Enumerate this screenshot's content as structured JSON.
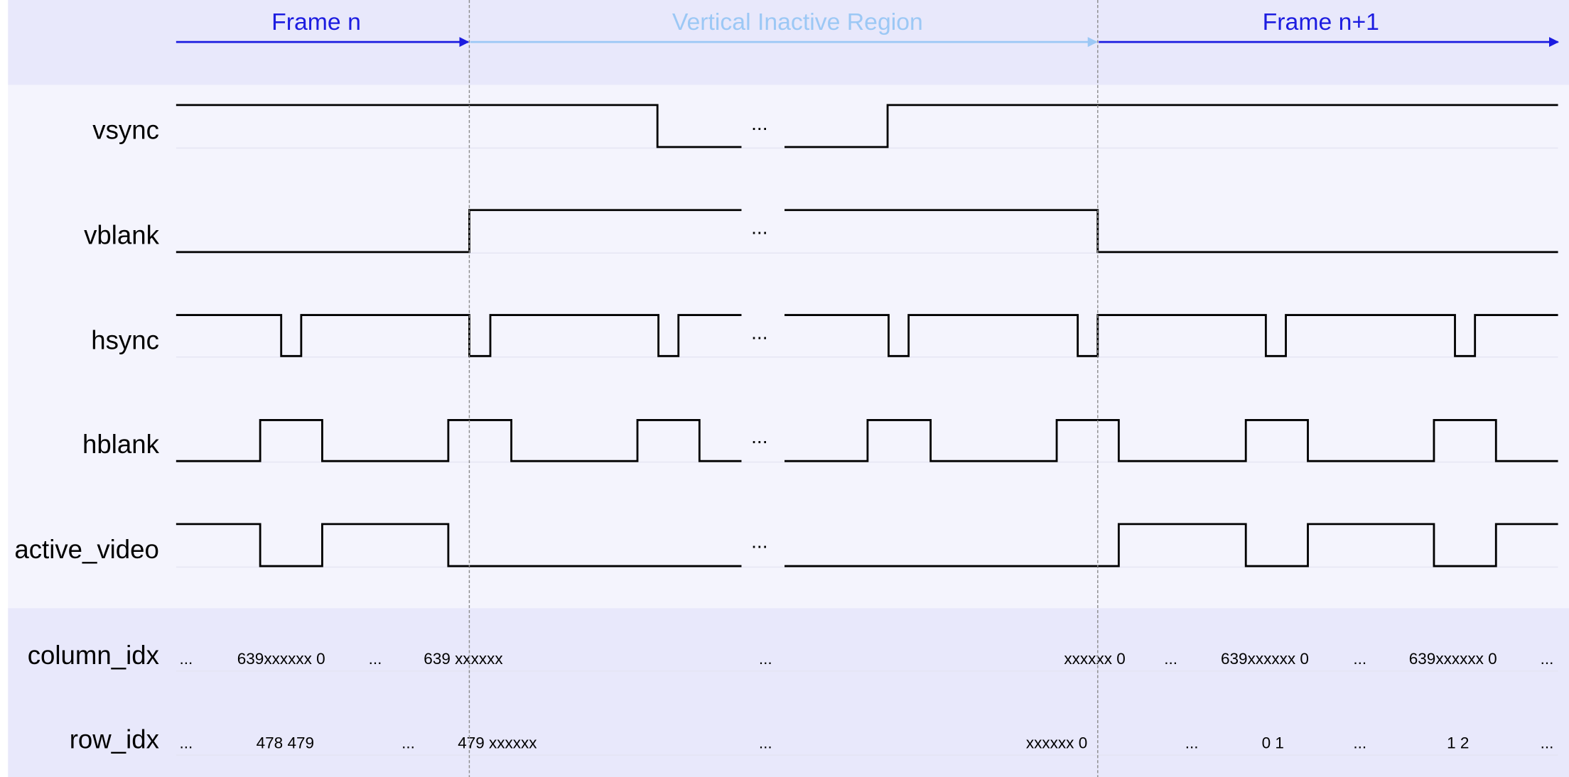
{
  "header": {
    "frame_n": "Frame n",
    "inactive": "Vertical Inactive Region",
    "frame_n1": "Frame n+1"
  },
  "signals": [
    "vsync",
    "vblank",
    "hsync",
    "hblank",
    "active_video",
    "column_idx",
    "row_idx"
  ],
  "gap_marker": "...",
  "column_idx_values": [
    "...",
    "639xxxxxx 0",
    "...",
    "639 xxxxxx",
    "...",
    "xxxxxx 0",
    "...",
    "639xxxxxx 0",
    "...",
    "639xxxxxx 0",
    "..."
  ],
  "row_idx_values": [
    "...",
    "478  479",
    "...",
    "479 xxxxxx",
    "...",
    "xxxxxx 0",
    "...",
    "0 1",
    "...",
    "1 2",
    "..."
  ],
  "colors": {
    "frame_arrow": "#1c1ce0",
    "inactive_arrow": "#9cc8f5",
    "band": "#e8e8fb",
    "panel": "#f4f4fd",
    "wave": "#000000"
  }
}
